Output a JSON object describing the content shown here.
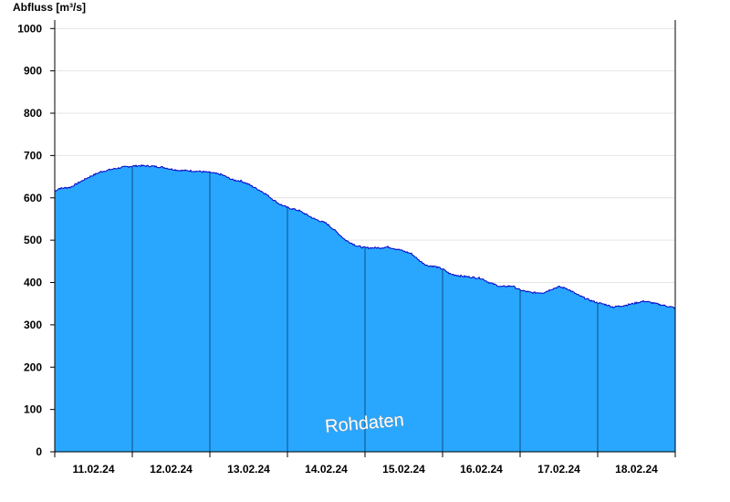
{
  "chart_data": {
    "type": "area",
    "title": "",
    "ylabel": "Abfluss [m³/s]",
    "xlabel": "",
    "ylim": [
      0,
      1020
    ],
    "yticks": [
      0,
      100,
      200,
      300,
      400,
      500,
      600,
      700,
      800,
      900,
      1000
    ],
    "grid": true,
    "watermark": "Rohdaten",
    "colors": {
      "fill": "#29a7ff",
      "line": "#0000c8",
      "day_line": "#0d4f80",
      "grid": "#e4e4e4"
    },
    "day_ticks": [
      "11.02.24",
      "12.02.24",
      "13.02.24",
      "14.02.24",
      "15.02.24",
      "16.02.24",
      "17.02.24",
      "18.02.24"
    ],
    "series": [
      {
        "name": "",
        "x_days": [
          0,
          0.05,
          0.2,
          0.3,
          0.35,
          0.45,
          0.6,
          0.75,
          0.9,
          1.0,
          1.1,
          1.25,
          1.4,
          1.5,
          1.6,
          1.75,
          1.9,
          2.0,
          2.15,
          2.3,
          2.4,
          2.5,
          2.6,
          2.7,
          2.8,
          2.9,
          3.0,
          3.15,
          3.35,
          3.5,
          3.6,
          3.75,
          3.9,
          4.0,
          4.2,
          4.3,
          4.45,
          4.6,
          4.7,
          4.8,
          4.9,
          5.0,
          5.1,
          5.25,
          5.4,
          5.5,
          5.6,
          5.75,
          5.9,
          6.0,
          6.15,
          6.3,
          6.4,
          6.5,
          6.6,
          6.75,
          6.9,
          7.0,
          7.1,
          7.2,
          7.35,
          7.5,
          7.6,
          7.75,
          8.0
        ],
        "values": [
          615,
          622,
          625,
          635,
          640,
          650,
          662,
          668,
          673,
          675,
          676,
          675,
          672,
          668,
          665,
          664,
          662,
          660,
          655,
          642,
          640,
          632,
          622,
          612,
          598,
          585,
          577,
          570,
          550,
          540,
          525,
          500,
          486,
          482,
          482,
          484,
          477,
          468,
          452,
          440,
          438,
          432,
          420,
          415,
          412,
          410,
          400,
          390,
          392,
          382,
          376,
          376,
          384,
          390,
          386,
          370,
          358,
          352,
          348,
          342,
          346,
          352,
          356,
          350,
          340
        ]
      }
    ]
  }
}
